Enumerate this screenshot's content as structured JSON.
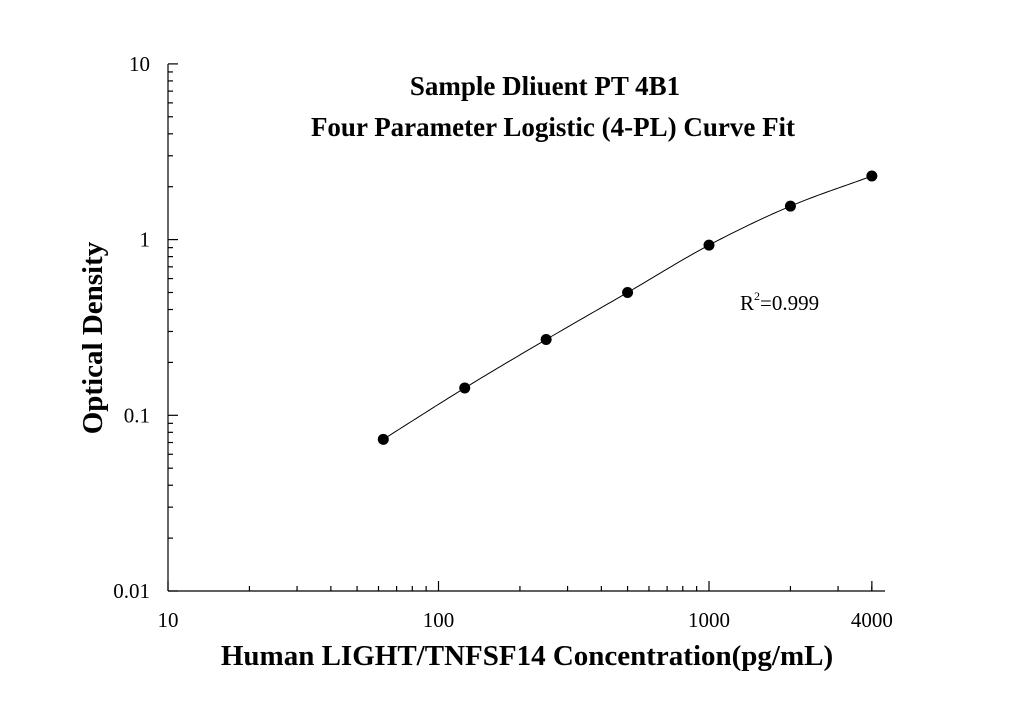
{
  "chart_data": {
    "type": "scatter",
    "title": [
      "Sample Dliuent PT 4B1",
      "Four Parameter Logistic (4-PL) Curve Fit"
    ],
    "xlabel": "Human LIGHT/TNFSF14 Concentration(pg/mL)",
    "ylabel": "Optical Density",
    "x_scale": "log",
    "y_scale": "log",
    "xlim": [
      10,
      5000
    ],
    "ylim": [
      0.01,
      10
    ],
    "x_ticks": [
      {
        "value": 10,
        "label": "10"
      },
      {
        "value": 100,
        "label": "100"
      },
      {
        "value": 1000,
        "label": "1000"
      },
      {
        "value": 4000,
        "label": "4000"
      }
    ],
    "y_ticks": [
      {
        "value": 0.01,
        "label": "0.01"
      },
      {
        "value": 0.1,
        "label": "0.1"
      },
      {
        "value": 1,
        "label": "1"
      },
      {
        "value": 10,
        "label": "10"
      }
    ],
    "points": {
      "x": [
        62.5,
        125,
        250,
        500,
        1000,
        2000,
        4000
      ],
      "y": [
        0.073,
        0.143,
        0.27,
        0.5,
        0.93,
        1.55,
        2.3
      ]
    },
    "fit": {
      "model": "4-PL",
      "r2_label": "R",
      "r2_superscript": "2",
      "r2_value": "=0.999"
    },
    "grid": false,
    "legend": "none"
  }
}
